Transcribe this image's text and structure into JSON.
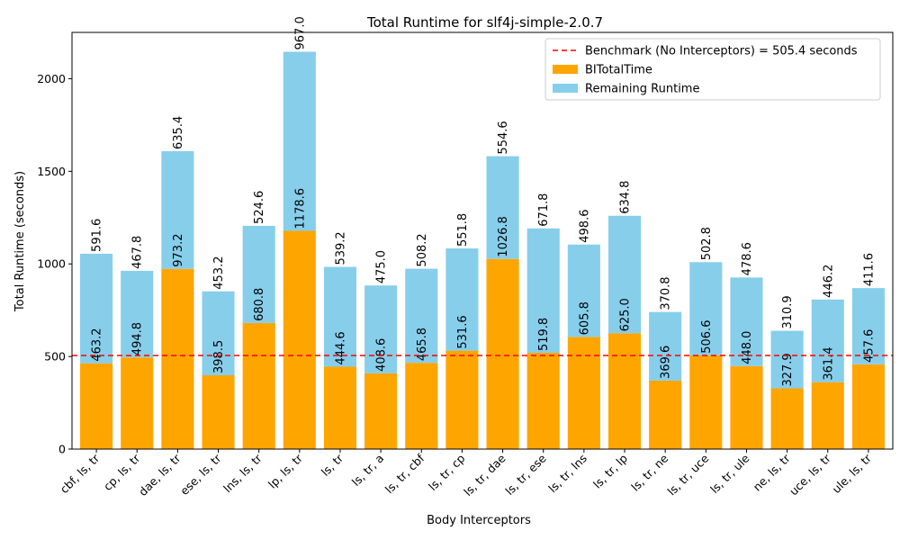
{
  "chart_data": {
    "type": "bar",
    "stacked": true,
    "title": "Total Runtime for slf4j-simple-2.0.7",
    "xlabel": "Body Interceptors",
    "ylabel": "Total Runtime (seconds)",
    "ylim": [
      0,
      2250
    ],
    "yticks": [
      0,
      500,
      1000,
      1500,
      2000
    ],
    "grid": false,
    "legend_position": "top-right",
    "categories": [
      "cbf, ls, tr",
      "cp, ls, tr",
      "dae, ls, tr",
      "ese, ls, tr",
      "lns, ls, tr",
      "lp, ls, tr",
      "ls, tr",
      "ls, tr, a",
      "ls, tr, cbf",
      "ls, tr, cp",
      "ls, tr, dae",
      "ls, tr, ese",
      "ls, tr, lns",
      "ls, tr, lp",
      "ls, tr, ne",
      "ls, tr, uce",
      "ls, tr, ule",
      "ne, ls, tr",
      "uce, ls, tr",
      "ule, ls, tr"
    ],
    "series": [
      {
        "name": "BITotalTime",
        "color": "#ffa500",
        "values": [
          463.2,
          494.8,
          973.2,
          398.5,
          680.8,
          1178.6,
          444.6,
          408.6,
          465.8,
          531.6,
          1026.8,
          519.8,
          605.8,
          625.0,
          369.6,
          506.6,
          448.0,
          327.9,
          361.4,
          457.6
        ]
      },
      {
        "name": "Remaining Runtime",
        "color": "#87ceeb",
        "values": [
          591.6,
          467.8,
          635.4,
          453.2,
          524.6,
          967.0,
          539.2,
          475.0,
          508.2,
          551.8,
          554.6,
          671.8,
          498.6,
          634.8,
          370.8,
          502.8,
          478.6,
          310.9,
          446.2,
          411.6
        ]
      }
    ],
    "benchmark": {
      "label": "Benchmark (No Interceptors) = 505.4 seconds",
      "value": 505.4,
      "color": "#ff0000",
      "style": "dashed"
    }
  }
}
